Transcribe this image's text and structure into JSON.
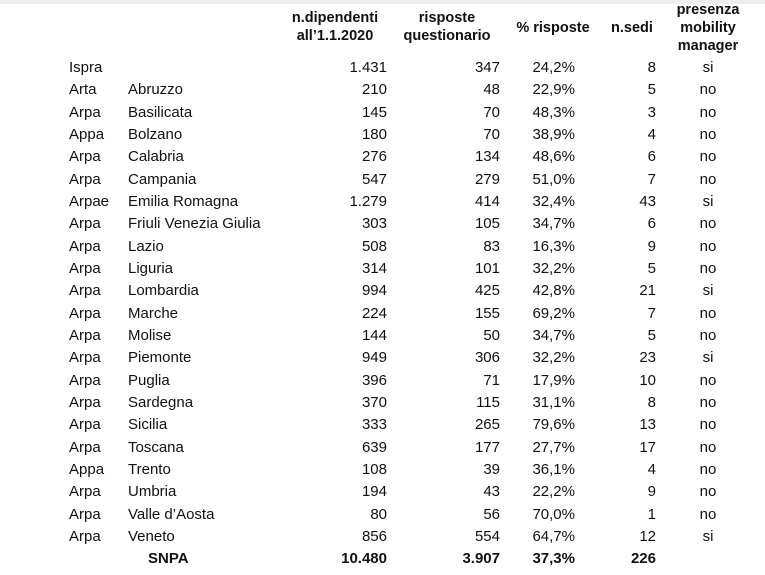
{
  "headers": {
    "dipendenti": [
      "n.dipendenti",
      "all’1.1.2020"
    ],
    "risposte": [
      "risposte",
      "questionario"
    ],
    "percentuale": "% risposte",
    "sedi": "n.sedi",
    "mobility": [
      "presenza",
      "mobility",
      "manager"
    ]
  },
  "rows": [
    {
      "ente": "Ispra",
      "regione": "",
      "dipendenti": "1.431",
      "risposte": "347",
      "percentuale": "24,2%",
      "sedi": "8",
      "mobility": "si"
    },
    {
      "ente": "Arta",
      "regione": "Abruzzo",
      "dipendenti": "210",
      "risposte": "48",
      "percentuale": "22,9%",
      "sedi": "5",
      "mobility": "no"
    },
    {
      "ente": "Arpa",
      "regione": "Basilicata",
      "dipendenti": "145",
      "risposte": "70",
      "percentuale": "48,3%",
      "sedi": "3",
      "mobility": "no"
    },
    {
      "ente": "Appa",
      "regione": "Bolzano",
      "dipendenti": "180",
      "risposte": "70",
      "percentuale": "38,9%",
      "sedi": "4",
      "mobility": "no"
    },
    {
      "ente": "Arpa",
      "regione": "Calabria",
      "dipendenti": "276",
      "risposte": "134",
      "percentuale": "48,6%",
      "sedi": "6",
      "mobility": "no"
    },
    {
      "ente": "Arpa",
      "regione": "Campania",
      "dipendenti": "547",
      "risposte": "279",
      "percentuale": "51,0%",
      "sedi": "7",
      "mobility": "no"
    },
    {
      "ente": "Arpae",
      "regione": "Emilia Romagna",
      "dipendenti": "1.279",
      "risposte": "414",
      "percentuale": "32,4%",
      "sedi": "43",
      "mobility": "si"
    },
    {
      "ente": "Arpa",
      "regione": "Friuli Venezia Giulia",
      "dipendenti": "303",
      "risposte": "105",
      "percentuale": "34,7%",
      "sedi": "6",
      "mobility": "no"
    },
    {
      "ente": "Arpa",
      "regione": "Lazio",
      "dipendenti": "508",
      "risposte": "83",
      "percentuale": "16,3%",
      "sedi": "9",
      "mobility": "no"
    },
    {
      "ente": "Arpa",
      "regione": "Liguria",
      "dipendenti": "314",
      "risposte": "101",
      "percentuale": "32,2%",
      "sedi": "5",
      "mobility": "no"
    },
    {
      "ente": "Arpa",
      "regione": "Lombardia",
      "dipendenti": "994",
      "risposte": "425",
      "percentuale": "42,8%",
      "sedi": "21",
      "mobility": "si"
    },
    {
      "ente": "Arpa",
      "regione": "Marche",
      "dipendenti": "224",
      "risposte": "155",
      "percentuale": "69,2%",
      "sedi": "7",
      "mobility": "no"
    },
    {
      "ente": "Arpa",
      "regione": "Molise",
      "dipendenti": "144",
      "risposte": "50",
      "percentuale": "34,7%",
      "sedi": "5",
      "mobility": "no"
    },
    {
      "ente": "Arpa",
      "regione": "Piemonte",
      "dipendenti": "949",
      "risposte": "306",
      "percentuale": "32,2%",
      "sedi": "23",
      "mobility": "si"
    },
    {
      "ente": "Arpa",
      "regione": "Puglia",
      "dipendenti": "396",
      "risposte": "71",
      "percentuale": "17,9%",
      "sedi": "10",
      "mobility": "no"
    },
    {
      "ente": "Arpa",
      "regione": "Sardegna",
      "dipendenti": "370",
      "risposte": "115",
      "percentuale": "31,1%",
      "sedi": "8",
      "mobility": "no"
    },
    {
      "ente": "Arpa",
      "regione": "Sicilia",
      "dipendenti": "333",
      "risposte": "265",
      "percentuale": "79,6%",
      "sedi": "13",
      "mobility": "no"
    },
    {
      "ente": "Arpa",
      "regione": "Toscana",
      "dipendenti": "639",
      "risposte": "177",
      "percentuale": "27,7%",
      "sedi": "17",
      "mobility": "no"
    },
    {
      "ente": "Appa",
      "regione": "Trento",
      "dipendenti": "108",
      "risposte": "39",
      "percentuale": "36,1%",
      "sedi": "4",
      "mobility": "no"
    },
    {
      "ente": "Arpa",
      "regione": "Umbria",
      "dipendenti": "194",
      "risposte": "43",
      "percentuale": "22,2%",
      "sedi": "9",
      "mobility": "no"
    },
    {
      "ente": "Arpa",
      "regione": "Valle d’Aosta",
      "dipendenti": "80",
      "risposte": "56",
      "percentuale": "70,0%",
      "sedi": "1",
      "mobility": "no"
    },
    {
      "ente": "Arpa",
      "regione": "Veneto",
      "dipendenti": "856",
      "risposte": "554",
      "percentuale": "64,7%",
      "sedi": "12",
      "mobility": "si"
    }
  ],
  "total": {
    "label": "SNPA",
    "dipendenti": "10.480",
    "risposte": "3.907",
    "percentuale": "37,3%",
    "sedi": "226"
  }
}
